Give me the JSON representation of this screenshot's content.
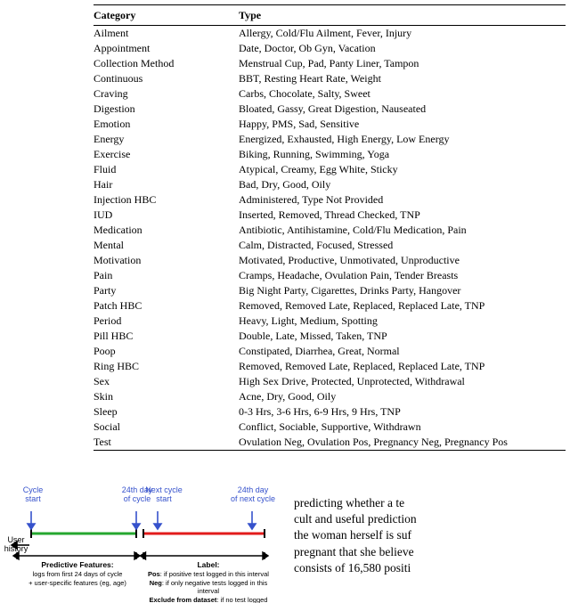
{
  "table": {
    "headers": [
      "Category",
      "Type"
    ],
    "rows": [
      [
        "Ailment",
        "Allergy, Cold/Flu Ailment, Fever, Injury"
      ],
      [
        "Appointment",
        "Date, Doctor, Ob Gyn, Vacation"
      ],
      [
        "Collection Method",
        "Menstrual Cup, Pad, Panty Liner, Tampon"
      ],
      [
        "Continuous",
        "BBT, Resting Heart Rate, Weight"
      ],
      [
        "Craving",
        "Carbs, Chocolate, Salty, Sweet"
      ],
      [
        "Digestion",
        "Bloated, Gassy, Great Digestion, Nauseated"
      ],
      [
        "Emotion",
        "Happy, PMS, Sad, Sensitive"
      ],
      [
        "Energy",
        "Energized, Exhausted, High Energy, Low Energy"
      ],
      [
        "Exercise",
        "Biking, Running, Swimming, Yoga"
      ],
      [
        "Fluid",
        "Atypical, Creamy, Egg White, Sticky"
      ],
      [
        "Hair",
        "Bad, Dry, Good, Oily"
      ],
      [
        "Injection HBC",
        "Administered, Type Not Provided"
      ],
      [
        "IUD",
        "Inserted, Removed, Thread Checked, TNP"
      ],
      [
        "Medication",
        "Antibiotic, Antihistamine, Cold/Flu Medication, Pain"
      ],
      [
        "Mental",
        "Calm, Distracted, Focused, Stressed"
      ],
      [
        "Motivation",
        "Motivated, Productive, Unmotivated, Unproductive"
      ],
      [
        "Pain",
        "Cramps, Headache, Ovulation Pain, Tender Breasts"
      ],
      [
        "Party",
        "Big Night Party, Cigarettes, Drinks Party, Hangover"
      ],
      [
        "Patch HBC",
        "Removed, Removed Late, Replaced, Replaced Late, TNP"
      ],
      [
        "Period",
        "Heavy, Light, Medium, Spotting"
      ],
      [
        "Pill HBC",
        "Double, Late, Missed, Taken, TNP"
      ],
      [
        "Poop",
        "Constipated, Diarrhea, Great, Normal"
      ],
      [
        "Ring HBC",
        "Removed, Removed Late, Replaced, Replaced Late, TNP"
      ],
      [
        "Sex",
        "High Sex Drive, Protected, Unprotected, Withdrawal"
      ],
      [
        "Skin",
        "Acne, Dry, Good, Oily"
      ],
      [
        "Sleep",
        "0-3 Hrs, 3-6 Hrs, 6-9 Hrs, 9 Hrs, TNP"
      ],
      [
        "Social",
        "Conflict, Sociable, Supportive, Withdrawn"
      ],
      [
        "Test",
        "Ovulation Neg, Ovulation Pos, Pregnancy Neg, Pregnancy Pos"
      ]
    ]
  },
  "diagram": {
    "colors": {
      "green": "#25a72f",
      "red": "#e21b1b",
      "blue": "#3652cc",
      "black": "#000000"
    },
    "stroke_width": 3,
    "arrow_labels": {
      "cycle_start": "Cycle\nstart",
      "day24": "24th day\nof cycle",
      "next_cycle": "Next cycle\nstart",
      "next_day24": "24th day\nof next cycle",
      "user_history": "User\nhistory"
    },
    "feature_block": {
      "title": "Predictive Features:",
      "line1": "logs from first 24 days of cycle",
      "line2": "+ user-specific features (eg, age)"
    },
    "label_block": {
      "title": "Label:",
      "pos": "Pos: if positive test logged in this interval",
      "neg": "Neg: if only negative tests logged in this interval",
      "exc": "Exclude from dataset: if no test logged"
    }
  },
  "paragraph": "predicting whether a test cult and useful prediction the woman herself is suf pregnant that she believe consists of 16,580 positi"
}
